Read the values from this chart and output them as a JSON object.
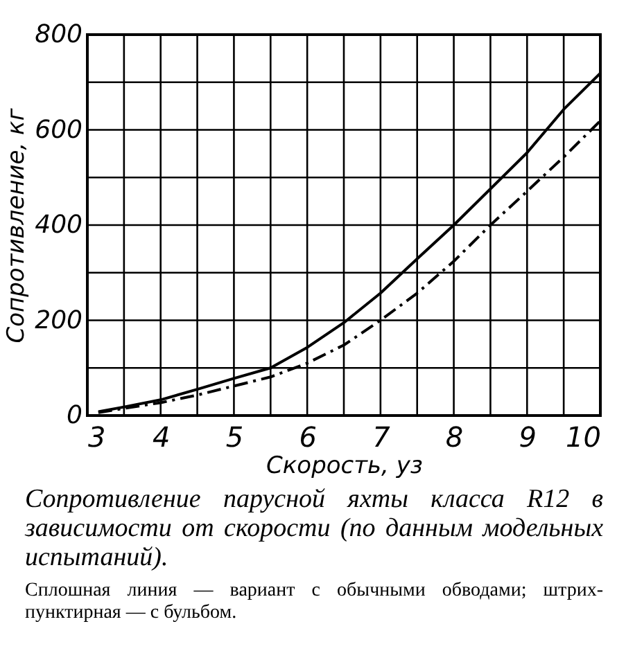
{
  "chart_data": {
    "type": "line",
    "title": "Сопротивление парусной яхты класса R12 в зависимости от скорости (по данным модельных испытаний).",
    "annotations": [
      "Сплошная линия — вариант с обычными обводами; штрих-пунктирная — с бульбом."
    ],
    "xlabel": "Скорость, уз",
    "ylabel": "Сопротивление, кг",
    "x": [
      3.15,
      3.5,
      4,
      4.5,
      5,
      5.5,
      6,
      6.5,
      7,
      7.5,
      8,
      8.5,
      9,
      9.5,
      10
    ],
    "series": [
      {
        "color": "#000000",
        "line_style": "solid",
        "values": [
          8,
          18,
          33,
          55,
          78,
          100,
          143,
          195,
          257,
          329,
          400,
          476,
          552,
          643,
          719
        ]
      },
      {
        "color": "#000000",
        "line_style": "dashed",
        "values": [
          6,
          15,
          27,
          43,
          62,
          81,
          110,
          148,
          200,
          257,
          324,
          400,
          471,
          543,
          619
        ]
      }
    ],
    "xlim": [
      3,
      10
    ],
    "ylim": [
      0,
      800
    ],
    "xticks": [
      3,
      {
        "value": 3.5,
        "label": null
      },
      4,
      {
        "value": 4.5,
        "label": null
      },
      5,
      {
        "value": 5.5,
        "label": null
      },
      6,
      {
        "value": 6.5,
        "label": null
      },
      7,
      {
        "value": 7.5,
        "label": null
      },
      8,
      {
        "value": 8.5,
        "label": null
      },
      9,
      {
        "value": 9.5,
        "label": null
      },
      10
    ],
    "yticks": [
      0,
      {
        "value": 100,
        "label": null
      },
      200,
      {
        "value": 300,
        "label": null
      },
      400,
      {
        "value": 500,
        "label": null
      },
      600,
      {
        "value": 700,
        "label": null
      },
      800
    ],
    "grid": true,
    "marker": "none"
  }
}
